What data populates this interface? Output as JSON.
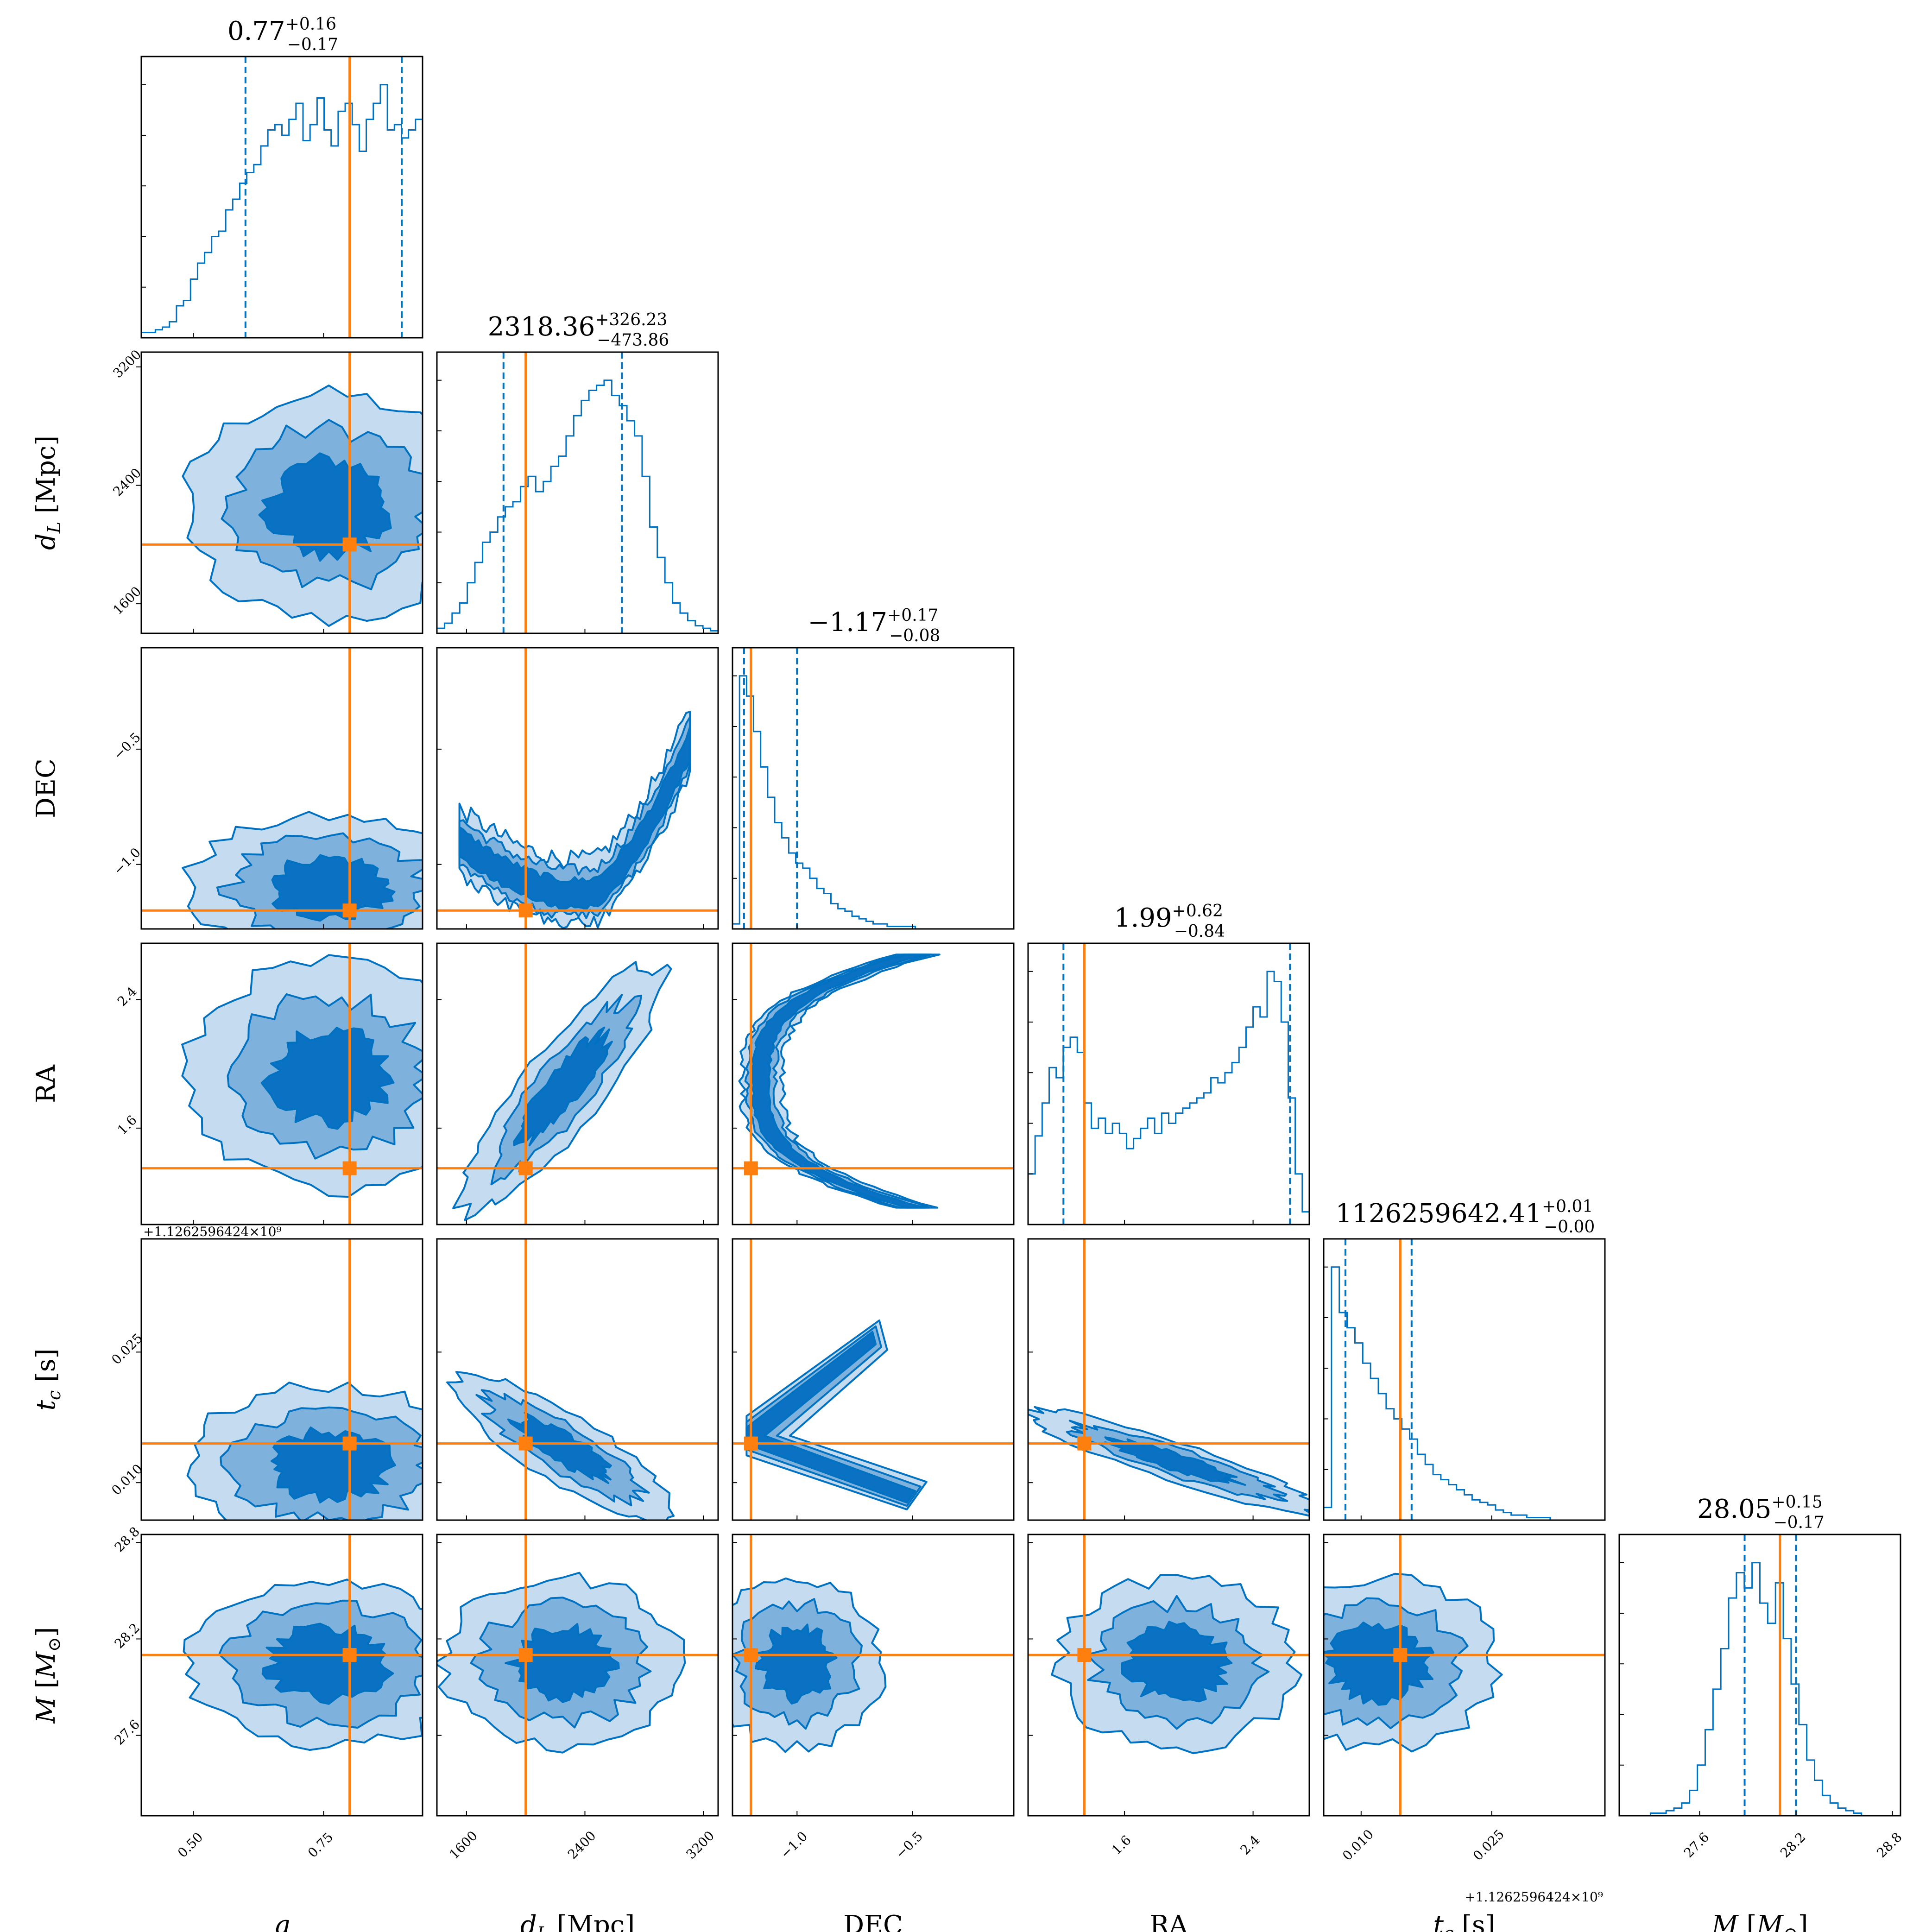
{
  "colors": {
    "posterior": "#0072C1",
    "truth": "#FF7F0E",
    "fill_levels": [
      "#C5DCF0",
      "#7FB1DD",
      "#0B72C3"
    ]
  },
  "chart_data": {
    "type": "corner",
    "parameters": [
      {
        "key": "q",
        "label": "q",
        "truth": 0.8,
        "range": [
          0.4,
          0.94
        ],
        "ticks": [
          0.5,
          0.75
        ],
        "tick_labels": [
          "0.50",
          "0.75"
        ],
        "title_main": "0.77",
        "title_plus": "+0.16",
        "title_minus": "−0.17",
        "quantiles": [
          0.6,
          0.9
        ],
        "marginal": [
          0.02,
          0.02,
          0.03,
          0.04,
          0.06,
          0.12,
          0.14,
          0.22,
          0.28,
          0.32,
          0.38,
          0.4,
          0.48,
          0.52,
          0.58,
          0.62,
          0.65,
          0.72,
          0.78,
          0.8,
          0.76,
          0.82,
          0.88,
          0.74,
          0.8,
          0.9,
          0.78,
          0.72,
          0.85,
          0.88,
          0.8,
          0.7,
          0.82,
          0.88,
          0.95,
          0.78,
          0.8,
          0.75,
          0.78,
          0.82
        ]
      },
      {
        "key": "dL",
        "label": "d_L [Mpc]",
        "truth": 2000,
        "range": [
          1400,
          3300
        ],
        "ticks": [
          1600,
          2400,
          3200
        ],
        "tick_labels": [
          "1600",
          "2400",
          "3200"
        ],
        "title_main": "2318.36",
        "title_plus": "+326.23",
        "title_minus": "−473.86",
        "quantiles": [
          1850,
          2650
        ],
        "marginal": [
          0.02,
          0.04,
          0.08,
          0.12,
          0.2,
          0.28,
          0.36,
          0.4,
          0.46,
          0.5,
          0.52,
          0.58,
          0.62,
          0.56,
          0.6,
          0.66,
          0.7,
          0.78,
          0.86,
          0.92,
          0.96,
          0.98,
          1.0,
          0.94,
          0.9,
          0.84,
          0.78,
          0.62,
          0.42,
          0.3,
          0.2,
          0.12,
          0.08,
          0.05,
          0.03,
          0.02,
          0.01
        ]
      },
      {
        "key": "DEC",
        "label": "DEC",
        "truth": -1.2,
        "range": [
          -1.28,
          -0.06
        ],
        "ticks": [
          -1.0,
          -0.5
        ],
        "tick_labels": [
          "−1.0",
          "−0.5"
        ],
        "title_main": "−1.17",
        "title_plus": "+0.17",
        "title_minus": "−0.08",
        "quantiles": [
          -1.23,
          -1.0
        ],
        "marginal": [
          0.02,
          1.0,
          0.92,
          0.78,
          0.64,
          0.52,
          0.42,
          0.36,
          0.3,
          0.26,
          0.24,
          0.2,
          0.16,
          0.14,
          0.1,
          0.08,
          0.07,
          0.05,
          0.04,
          0.03,
          0.02,
          0.02,
          0.01,
          0.01,
          0.01,
          0.01,
          0.0,
          0.0,
          0.0,
          0.0,
          0.0,
          0.0,
          0.0,
          0.0,
          0.0,
          0.0,
          0.0,
          0.0,
          0.0,
          0.0
        ]
      },
      {
        "key": "RA",
        "label": "RA",
        "truth": 1.35,
        "range": [
          1.0,
          2.75
        ],
        "ticks": [
          1.6,
          2.4
        ],
        "tick_labels": [
          "1.6",
          "2.4"
        ],
        "title_main": "1.99",
        "title_plus": "+0.62",
        "title_minus": "−0.84",
        "quantiles": [
          1.22,
          2.63
        ],
        "marginal": [
          0.2,
          0.35,
          0.48,
          0.62,
          0.58,
          0.7,
          0.74,
          0.68,
          0.48,
          0.38,
          0.42,
          0.36,
          0.4,
          0.36,
          0.3,
          0.34,
          0.38,
          0.42,
          0.36,
          0.44,
          0.4,
          0.44,
          0.46,
          0.48,
          0.5,
          0.52,
          0.58,
          0.56,
          0.6,
          0.64,
          0.7,
          0.78,
          0.86,
          0.82,
          1.0,
          0.96,
          0.8,
          0.5,
          0.2,
          0.05
        ]
      },
      {
        "key": "tc",
        "label": "t_c [s]",
        "truth": 0.0145,
        "range": [
          0.0057,
          0.038
        ],
        "ticks": [
          0.01,
          0.025
        ],
        "tick_labels": [
          "0.010",
          "0.025"
        ],
        "offset_label": "+1.1262596424×10⁹",
        "title_main": "1126259642.41",
        "title_plus": "+0.01",
        "title_minus": "−0.00",
        "quantiles": [
          0.0082,
          0.0158
        ],
        "marginal": [
          0.05,
          1.0,
          0.82,
          0.76,
          0.7,
          0.62,
          0.56,
          0.5,
          0.44,
          0.4,
          0.36,
          0.32,
          0.26,
          0.22,
          0.18,
          0.16,
          0.14,
          0.12,
          0.1,
          0.08,
          0.07,
          0.06,
          0.04,
          0.03,
          0.02,
          0.02,
          0.01,
          0.01,
          0.01,
          0.0,
          0.0,
          0.0,
          0.0,
          0.0,
          0.0,
          0.0
        ]
      },
      {
        "key": "M",
        "label": "M [M_⊙]",
        "truth": 28.1,
        "range": [
          27.1,
          28.85
        ],
        "ticks": [
          27.6,
          28.2,
          28.8
        ],
        "tick_labels": [
          "27.6",
          "28.2",
          "28.8"
        ],
        "title_main": "28.05",
        "title_plus": "+0.15",
        "title_minus": "−0.17",
        "quantiles": [
          27.88,
          28.2
        ],
        "marginal": [
          0.0,
          0.0,
          0.0,
          0.0,
          0.01,
          0.01,
          0.02,
          0.03,
          0.05,
          0.1,
          0.2,
          0.34,
          0.5,
          0.66,
          0.86,
          0.96,
          0.9,
          1.0,
          0.84,
          0.76,
          0.92,
          0.7,
          0.52,
          0.36,
          0.22,
          0.14,
          0.08,
          0.05,
          0.03,
          0.02,
          0.01,
          0.0,
          0.0,
          0.0,
          0.0,
          0.0
        ]
      }
    ],
    "contour_levels": 3,
    "grid": false,
    "legend": "none"
  }
}
